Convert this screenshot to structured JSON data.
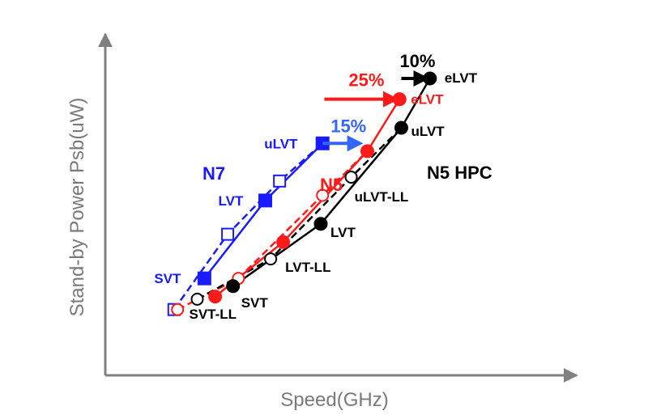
{
  "colors": {
    "N7": "#1a1aff",
    "N5": "#ff1a1a",
    "N5 HPC": "#000000",
    "axis": "#808080",
    "gain_15": "#3366ff",
    "gain_25": "#ff1a1a",
    "gain_10": "#000000"
  },
  "chart_data": {
    "type": "line",
    "title": "",
    "xlabel": "Speed(GHz)",
    "ylabel": "Stand-by Power Psb(uW)",
    "x_ticks": "none",
    "y_ticks": "none",
    "grid": false,
    "legend": "none",
    "xlim": [
      0,
      100
    ],
    "ylim": [
      0,
      100
    ],
    "series": [
      {
        "name": "N7",
        "color_key": "N7",
        "marker": "square",
        "points": [
          {
            "label": "SVT",
            "x": 17.5,
            "y": 23
          },
          {
            "label": "LVT",
            "x": 34.5,
            "y": 53
          },
          {
            "label": "uLVT",
            "x": 50.5,
            "y": 75
          }
        ],
        "ll_points": [
          {
            "x": 9,
            "y": 11
          },
          {
            "x": 24,
            "y": 40
          },
          {
            "x": 38.5,
            "y": 60.5
          }
        ]
      },
      {
        "name": "N5",
        "color_key": "N5",
        "marker": "circle",
        "points": [
          {
            "label": "",
            "x": 20.5,
            "y": 16
          },
          {
            "label": "",
            "x": 39.5,
            "y": 37
          },
          {
            "label": "",
            "x": 63,
            "y": 72
          },
          {
            "label": "eLVT",
            "x": 72,
            "y": 92
          }
        ],
        "ll_points": [
          {
            "x": 10,
            "y": 11
          },
          {
            "x": 27,
            "y": 23
          },
          {
            "x": 50.5,
            "y": 55
          }
        ]
      },
      {
        "name": "N5 HPC",
        "color_key": "N5 HPC",
        "marker": "circle",
        "points": [
          {
            "label": "SVT",
            "x": 25.5,
            "y": 20
          },
          {
            "label": "LVT",
            "x": 50,
            "y": 44
          },
          {
            "label": "uLVT",
            "x": 72.5,
            "y": 81
          },
          {
            "label": "eLVT",
            "x": 80.5,
            "y": 100
          }
        ],
        "ll_points": [
          {
            "label": "SVT-LL",
            "x": 15.5,
            "y": 15
          },
          {
            "label": "LVT-LL",
            "x": 36,
            "y": 30.5
          },
          {
            "label": "uLVT-LL",
            "x": 58.5,
            "y": 62
          }
        ]
      }
    ],
    "annotations": [
      {
        "text": "15%",
        "color_key": "gain_15",
        "from_x": 50.5,
        "to_x": 61,
        "y": 75
      },
      {
        "text": "25%",
        "color_key": "gain_25",
        "from_x": 51,
        "to_x": 71,
        "y": 92
      },
      {
        "text": "10%",
        "color_key": "gain_10",
        "from_x": 72.5,
        "to_x": 79.5,
        "y": 100
      }
    ],
    "series_labels": [
      {
        "text": "N7",
        "color_key": "N7"
      },
      {
        "text": "N5",
        "color_key": "N5"
      },
      {
        "text": "N5 HPC",
        "color_key": "N5 HPC"
      }
    ]
  }
}
